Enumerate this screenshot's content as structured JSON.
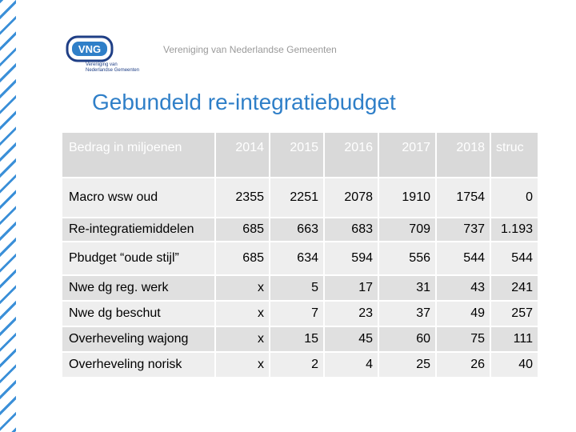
{
  "header": {
    "logo_text": "VNG",
    "logo_sub": [
      "Vereniging van",
      "Nederlandse Gemeenten"
    ],
    "org_name": "Vereniging van Nederlandse Gemeenten"
  },
  "title": "Gebundeld re-integratiebudget",
  "table": {
    "columns": [
      "Bedrag in miljoenen",
      "2014",
      "2015",
      "2016",
      "2017",
      "2018",
      "struc"
    ],
    "rows": [
      [
        "Macro wsw oud",
        "2355",
        "2251",
        "2078",
        "1910",
        "1754",
        "0"
      ],
      [
        "Re-integratiemiddelen",
        "685",
        "663",
        "683",
        "709",
        "737",
        "1.193"
      ],
      [
        "Pbudget “oude stijl”",
        "685",
        "634",
        "594",
        "556",
        "544",
        "544"
      ],
      [
        "Nwe dg reg. werk",
        "x",
        "5",
        "17",
        "31",
        "43",
        "241"
      ],
      [
        "Nwe dg beschut",
        "x",
        "7",
        "23",
        "37",
        "49",
        "257"
      ],
      [
        "Overheveling wajong",
        "x",
        "15",
        "45",
        "60",
        "75",
        "111"
      ],
      [
        "Overheveling norisk",
        "x",
        "2",
        "4",
        "25",
        "26",
        "40"
      ]
    ]
  },
  "colors": {
    "accent": "#2f7fc8",
    "logo_blue": "#1f3f86",
    "stripe": "#3a8fd8"
  }
}
